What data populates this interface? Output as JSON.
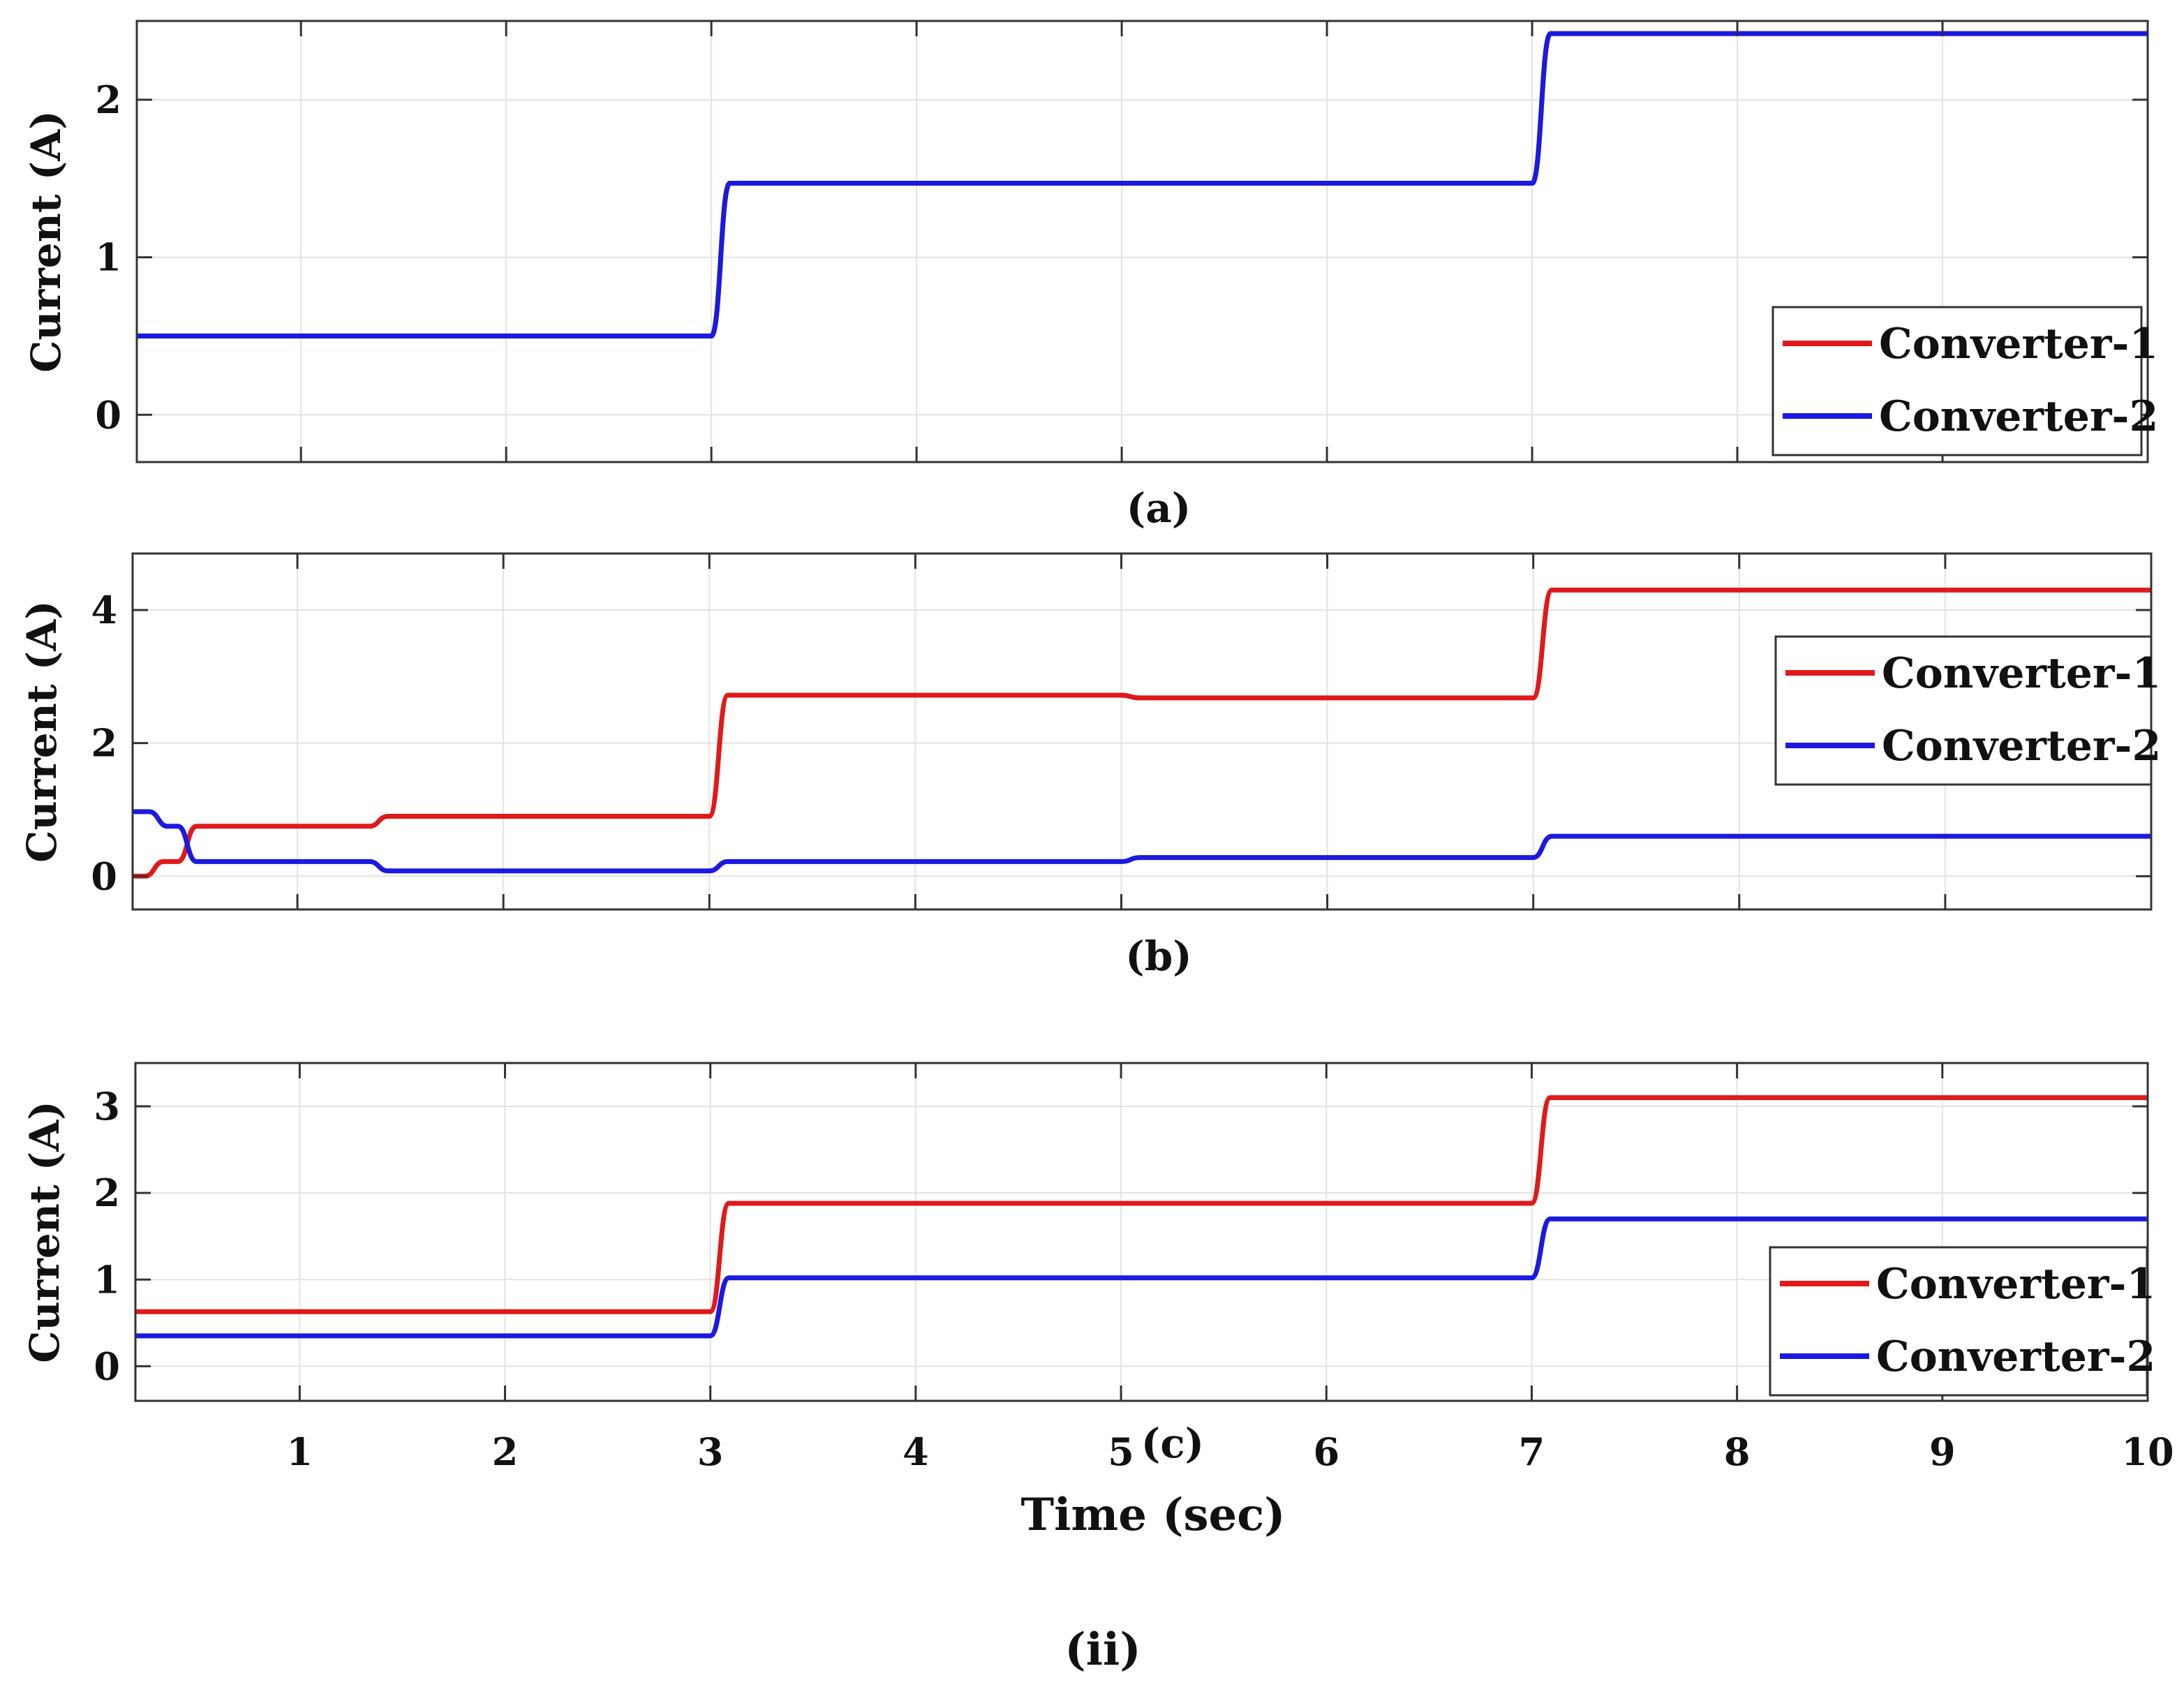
{
  "figure": {
    "label": "(ii)",
    "xlabel": "Time (sec)",
    "xlim": [
      0.2,
      10
    ],
    "xticks": [
      1,
      2,
      3,
      4,
      5,
      6,
      7,
      8,
      9,
      10
    ],
    "grid": true,
    "colors": {
      "converter1": "#e01a1a",
      "converter2": "#1a1ae0"
    }
  },
  "chart_data": [
    {
      "type": "line",
      "caption": "(a)",
      "ylabel": "Current (A)",
      "xlim": [
        0.2,
        10
      ],
      "ylim": [
        -0.3,
        2.5
      ],
      "yticks": [
        0,
        1,
        2
      ],
      "legend": {
        "placement": "bottom-right",
        "entries": [
          "Converter-1",
          "Converter-2"
        ]
      },
      "series": [
        {
          "name": "Converter-1",
          "color": "#e01a1a",
          "segments": [
            {
              "t": 0.2,
              "v": 0.5
            },
            {
              "t": 3,
              "v": 1.47
            },
            {
              "t": 7,
              "v": 2.42
            }
          ]
        },
        {
          "name": "Converter-2",
          "color": "#1a1ae0",
          "segments": [
            {
              "t": 0.2,
              "v": 0.5
            },
            {
              "t": 3,
              "v": 1.47
            },
            {
              "t": 7,
              "v": 2.42
            }
          ]
        }
      ]
    },
    {
      "type": "line",
      "caption": "(b)",
      "ylabel": "Current (A)",
      "xlim": [
        0.2,
        10
      ],
      "ylim": [
        -0.5,
        4.85
      ],
      "yticks": [
        0,
        2,
        4
      ],
      "legend": {
        "placement": "right",
        "entries": [
          "Converter-1",
          "Converter-2"
        ]
      },
      "series": [
        {
          "name": "Converter-1",
          "color": "#e01a1a",
          "segments": [
            {
              "t": 0.2,
              "v": 0.0
            },
            {
              "t": 0.26,
              "v": 0.22
            },
            {
              "t": 0.42,
              "v": 0.75
            },
            {
              "t": 1.35,
              "v": 0.9
            },
            {
              "t": 3,
              "v": 2.72
            },
            {
              "t": 5,
              "v": 2.68
            },
            {
              "t": 7,
              "v": 4.3
            }
          ]
        },
        {
          "name": "Converter-2",
          "color": "#1a1ae0",
          "segments": [
            {
              "t": 0.2,
              "v": 0.97
            },
            {
              "t": 0.28,
              "v": 0.75
            },
            {
              "t": 0.42,
              "v": 0.22
            },
            {
              "t": 1.35,
              "v": 0.08
            },
            {
              "t": 3,
              "v": 0.22
            },
            {
              "t": 5,
              "v": 0.28
            },
            {
              "t": 7,
              "v": 0.6
            }
          ]
        }
      ]
    },
    {
      "type": "line",
      "caption": "(c)",
      "ylabel": "Current (A)",
      "xlim": [
        0.2,
        10
      ],
      "ylim": [
        -0.4,
        3.5
      ],
      "yticks": [
        0,
        1,
        2,
        3
      ],
      "legend": {
        "placement": "bottom-right",
        "entries": [
          "Converter-1",
          "Converter-2"
        ]
      },
      "series": [
        {
          "name": "Converter-1",
          "color": "#e01a1a",
          "segments": [
            {
              "t": 0.2,
              "v": 0.63
            },
            {
              "t": 3,
              "v": 1.88
            },
            {
              "t": 7,
              "v": 3.1
            }
          ]
        },
        {
          "name": "Converter-2",
          "color": "#1a1ae0",
          "segments": [
            {
              "t": 0.2,
              "v": 0.35
            },
            {
              "t": 3,
              "v": 1.02
            },
            {
              "t": 7,
              "v": 1.7
            }
          ]
        }
      ]
    }
  ]
}
